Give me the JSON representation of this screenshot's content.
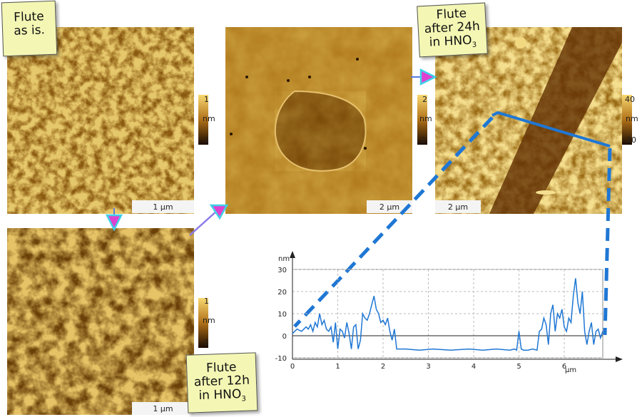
{
  "panels": {
    "as_is": {
      "scalebar": "1 µm",
      "colorbar": {
        "max": "1",
        "unit": "nm",
        "min": "-1"
      },
      "note": [
        "Flute",
        "as is."
      ]
    },
    "after_12h": {
      "scalebar": "1 µm",
      "colorbar": {
        "max": "1",
        "unit": "nm",
        "min": "-1"
      },
      "note": [
        "Flute",
        "after 12h",
        "in HNO"
      ],
      "note_sub": "3"
    },
    "middle": {
      "scalebar": "2 µm",
      "colorbar": {
        "max": "2",
        "unit": "nm",
        "min": "-2"
      }
    },
    "after_24h": {
      "scalebar": "2 µm",
      "colorbar": {
        "max": "40",
        "unit": "nm",
        "min": "-20"
      },
      "note": [
        "Flute",
        "after 24h",
        "in HNO"
      ],
      "note_sub": "3"
    }
  },
  "colors": {
    "afm_light": "#e0b23a",
    "afm_dark": "#2a1500",
    "arrow_fill": "#e040d0",
    "arrow_edge": "#40d0e8",
    "profile_line": "#1f77d4",
    "note_bg": "#f4f7b4"
  },
  "chart_data": {
    "type": "line",
    "ylabel": "nm",
    "xunit": "µm",
    "xlim": [
      0,
      6.85
    ],
    "ylim": [
      -10,
      30
    ],
    "xticks": [
      "0",
      "1",
      "2",
      "3",
      "4",
      "5",
      "6"
    ],
    "yticks": [
      "-10",
      "0",
      "10",
      "20",
      "30"
    ],
    "grid": true,
    "series": [
      {
        "x": [
          0,
          0.1,
          0.2,
          0.3,
          0.35,
          0.4,
          0.45,
          0.5,
          0.55,
          0.6,
          0.65,
          0.7,
          0.75,
          0.8,
          0.85,
          0.9,
          0.95,
          1.0,
          1.05,
          1.1,
          1.15,
          1.2,
          1.25,
          1.3,
          1.35,
          1.4,
          1.45,
          1.5,
          1.55,
          1.6,
          1.65,
          1.7,
          1.75,
          1.8,
          1.85,
          1.9,
          1.95,
          2.0,
          2.05,
          2.1,
          2.15,
          2.2,
          2.25,
          2.3,
          2.5,
          2.8,
          3.1,
          3.5,
          3.9,
          4.2,
          4.5,
          4.8,
          4.9,
          4.95,
          5.0,
          5.05,
          5.1,
          5.2,
          5.3,
          5.4,
          5.45,
          5.5,
          5.55,
          5.6,
          5.65,
          5.7,
          5.75,
          5.8,
          5.85,
          5.9,
          5.95,
          6.0,
          6.05,
          6.1,
          6.15,
          6.2,
          6.25,
          6.3,
          6.35,
          6.4,
          6.45,
          6.5,
          6.55,
          6.6,
          6.65,
          6.7,
          6.75,
          6.8,
          6.85
        ],
        "y": [
          1,
          3,
          2,
          4,
          3,
          5,
          2,
          6,
          4,
          10,
          5,
          7,
          3,
          2,
          4,
          -3,
          6,
          -6,
          3,
          2,
          -1,
          6,
          1,
          -6,
          4,
          5,
          -6,
          -2,
          10,
          8,
          7,
          10,
          14,
          18,
          12,
          10,
          6,
          7,
          5,
          8,
          2,
          -2,
          3,
          -6,
          -6,
          -6.5,
          -6,
          -6.5,
          -6,
          -6.5,
          -6,
          -6.5,
          -6,
          -6.5,
          2,
          -6,
          -6.5,
          -6.5,
          -6,
          -6.5,
          2,
          3,
          8,
          5,
          -4,
          10,
          14,
          2,
          10,
          8,
          12,
          4,
          2,
          8,
          6,
          18,
          26,
          15,
          10,
          20,
          2,
          -4,
          2,
          6,
          -4,
          2,
          3,
          -1,
          2
        ]
      }
    ]
  }
}
